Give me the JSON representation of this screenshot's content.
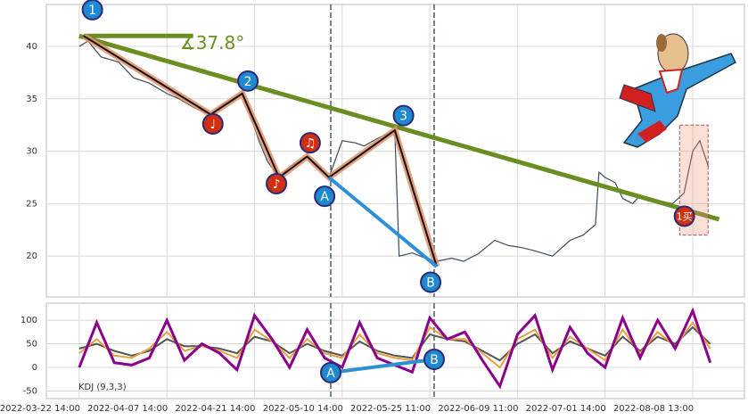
{
  "chart_data": [
    {
      "type": "line",
      "color": "#3b4a5c",
      "x": [
        0,
        2,
        5,
        9,
        12.4,
        16,
        20,
        22.8,
        26,
        30,
        33,
        37.2,
        39,
        41,
        43,
        45.6,
        48,
        52,
        55,
        57,
        60,
        63,
        65,
        68,
        72,
        73,
        76,
        79,
        81.6,
        85,
        87.7,
        91,
        94.8,
        98,
        101,
        104,
        108,
        112,
        115,
        117.8,
        118.6,
        120,
        122.3,
        124,
        126.3,
        128,
        130.4,
        133,
        135.4,
        138,
        140,
        141.6,
        143.6
      ],
      "values": [
        40,
        40.5,
        39,
        38.5,
        37,
        36.5,
        35.5,
        35,
        34.2,
        33.5,
        34.5,
        35.5,
        33.5,
        31,
        29,
        27.5,
        28.5,
        29.5,
        28.5,
        27.5,
        31,
        30.8,
        30.5,
        31.2,
        32,
        20,
        20.3,
        19.8,
        19.5,
        19.8,
        19.5,
        20.2,
        21.5,
        21,
        20.8,
        20.5,
        20,
        21.5,
        22,
        23,
        28,
        27.5,
        27,
        25.5,
        25,
        25.8,
        25.5,
        25.2,
        25,
        26,
        30,
        31,
        28.5
      ],
      "xlim": [
        -7.5,
        151.8
      ],
      "ylim": [
        16.1,
        44.0
      ],
      "yticks": [
        20,
        25,
        30,
        35,
        40
      ],
      "grid": true,
      "trend_line": {
        "x": [
          0,
          146
        ],
        "y": [
          41,
          23.5
        ],
        "color": "#6b8e23"
      },
      "flat_line": {
        "x": [
          1,
          26
        ],
        "y": [
          41,
          41
        ],
        "color": "#6b8e23"
      },
      "angle_label": "∡37.8°",
      "wave_line": {
        "x": [
          1,
          30,
          37.2,
          45.6,
          52,
          57,
          72,
          81.6
        ],
        "y": [
          41,
          33.5,
          35.5,
          27.5,
          29.5,
          27.5,
          32,
          19
        ],
        "color": "#e0906a"
      },
      "ab_line": {
        "x": [
          57,
          81.6
        ],
        "y": [
          27.5,
          19
        ],
        "color": "#2d8fd5"
      },
      "vlines": [
        57.4,
        81
      ],
      "buy_box": {
        "x": [
          137,
          143.5
        ],
        "y": [
          32.5,
          22
        ]
      },
      "markers": [
        {
          "label": "1",
          "x": 3,
          "y": 43.5,
          "color": "#1e88d0"
        },
        {
          "label": "2",
          "x": 38.5,
          "y": 36.7,
          "color": "#1e88d0"
        },
        {
          "label": "3",
          "x": 74,
          "y": 33.4,
          "color": "#1e88d0"
        },
        {
          "label": "A",
          "x": 56,
          "y": 25.7,
          "color": "#1e88d0"
        },
        {
          "label": "B",
          "x": 80.2,
          "y": 17.5,
          "color": "#1e88d0"
        },
        {
          "label": "♩",
          "x": 30.5,
          "y": 32.6,
          "color": "#d03010"
        },
        {
          "label": "♪",
          "x": 45,
          "y": 26.9,
          "color": "#d03010"
        },
        {
          "label": "♫",
          "x": 52.7,
          "y": 30.8,
          "color": "#d03010"
        },
        {
          "label": "1买",
          "x": 138.1,
          "y": 23.8,
          "color": "#d03010"
        }
      ]
    },
    {
      "type": "line",
      "title": "KDJ (9,3,3)",
      "x": [
        0,
        4,
        8,
        12,
        16,
        20,
        24,
        28,
        32,
        36,
        40,
        44,
        48,
        52,
        56,
        60,
        64,
        68,
        72,
        76,
        80,
        84,
        88,
        92,
        96,
        100,
        104,
        108,
        112,
        116,
        120,
        124,
        128,
        132,
        136,
        140,
        144
      ],
      "series": [
        {
          "color": "#555555",
          "values": [
            40,
            50,
            35,
            25,
            35,
            60,
            45,
            45,
            40,
            30,
            65,
            55,
            30,
            50,
            35,
            25,
            55,
            35,
            25,
            20,
            70,
            60,
            55,
            35,
            15,
            50,
            70,
            30,
            55,
            40,
            25,
            65,
            35,
            65,
            50,
            85,
            50
          ]
        },
        {
          "color": "#e8a040",
          "values": [
            30,
            60,
            25,
            20,
            40,
            75,
            35,
            45,
            35,
            20,
            80,
            55,
            20,
            60,
            30,
            20,
            70,
            30,
            20,
            15,
            85,
            60,
            60,
            30,
            0,
            60,
            80,
            20,
            65,
            40,
            15,
            80,
            30,
            75,
            45,
            95,
            40
          ]
        },
        {
          "color": "#8b008b",
          "values": [
            0,
            95,
            10,
            5,
            20,
            100,
            15,
            50,
            30,
            -5,
            110,
            60,
            0,
            80,
            20,
            0,
            95,
            20,
            5,
            -10,
            105,
            60,
            75,
            15,
            -40,
            70,
            110,
            -5,
            85,
            30,
            0,
            105,
            20,
            100,
            40,
            120,
            10
          ]
        }
      ],
      "xlim": [
        -7.5,
        151.8
      ],
      "ylim": [
        -66,
        136
      ],
      "yticks": [
        -50,
        0,
        50,
        100
      ],
      "grid": true,
      "xticks": [
        {
          "value": 0,
          "label": "2022-03-22 14:00"
        },
        {
          "value": 20,
          "label": "2022-04-07 14:00"
        },
        {
          "value": 40,
          "label": "2022-04-21 14:00"
        },
        {
          "value": 60,
          "label": "2022-05-10 14:00"
        },
        {
          "value": 80,
          "label": "2022-05-25 11:00"
        },
        {
          "value": 100,
          "label": "2022-06-09 11:00"
        },
        {
          "value": 120,
          "label": "2022-07-01 14:00"
        },
        {
          "value": 140,
          "label": "2022-08-08 13:00"
        }
      ],
      "vlines": [
        57.4,
        81
      ],
      "ab_line": {
        "x": [
          57.4,
          81
        ],
        "y": [
          -11,
          17
        ],
        "color": "#2d8fd5"
      },
      "markers": [
        {
          "label": "A",
          "x": 57.4,
          "y": -11,
          "color": "#1e88d0"
        },
        {
          "label": "B",
          "x": 81,
          "y": 17,
          "color": "#1e88d0"
        }
      ]
    }
  ]
}
